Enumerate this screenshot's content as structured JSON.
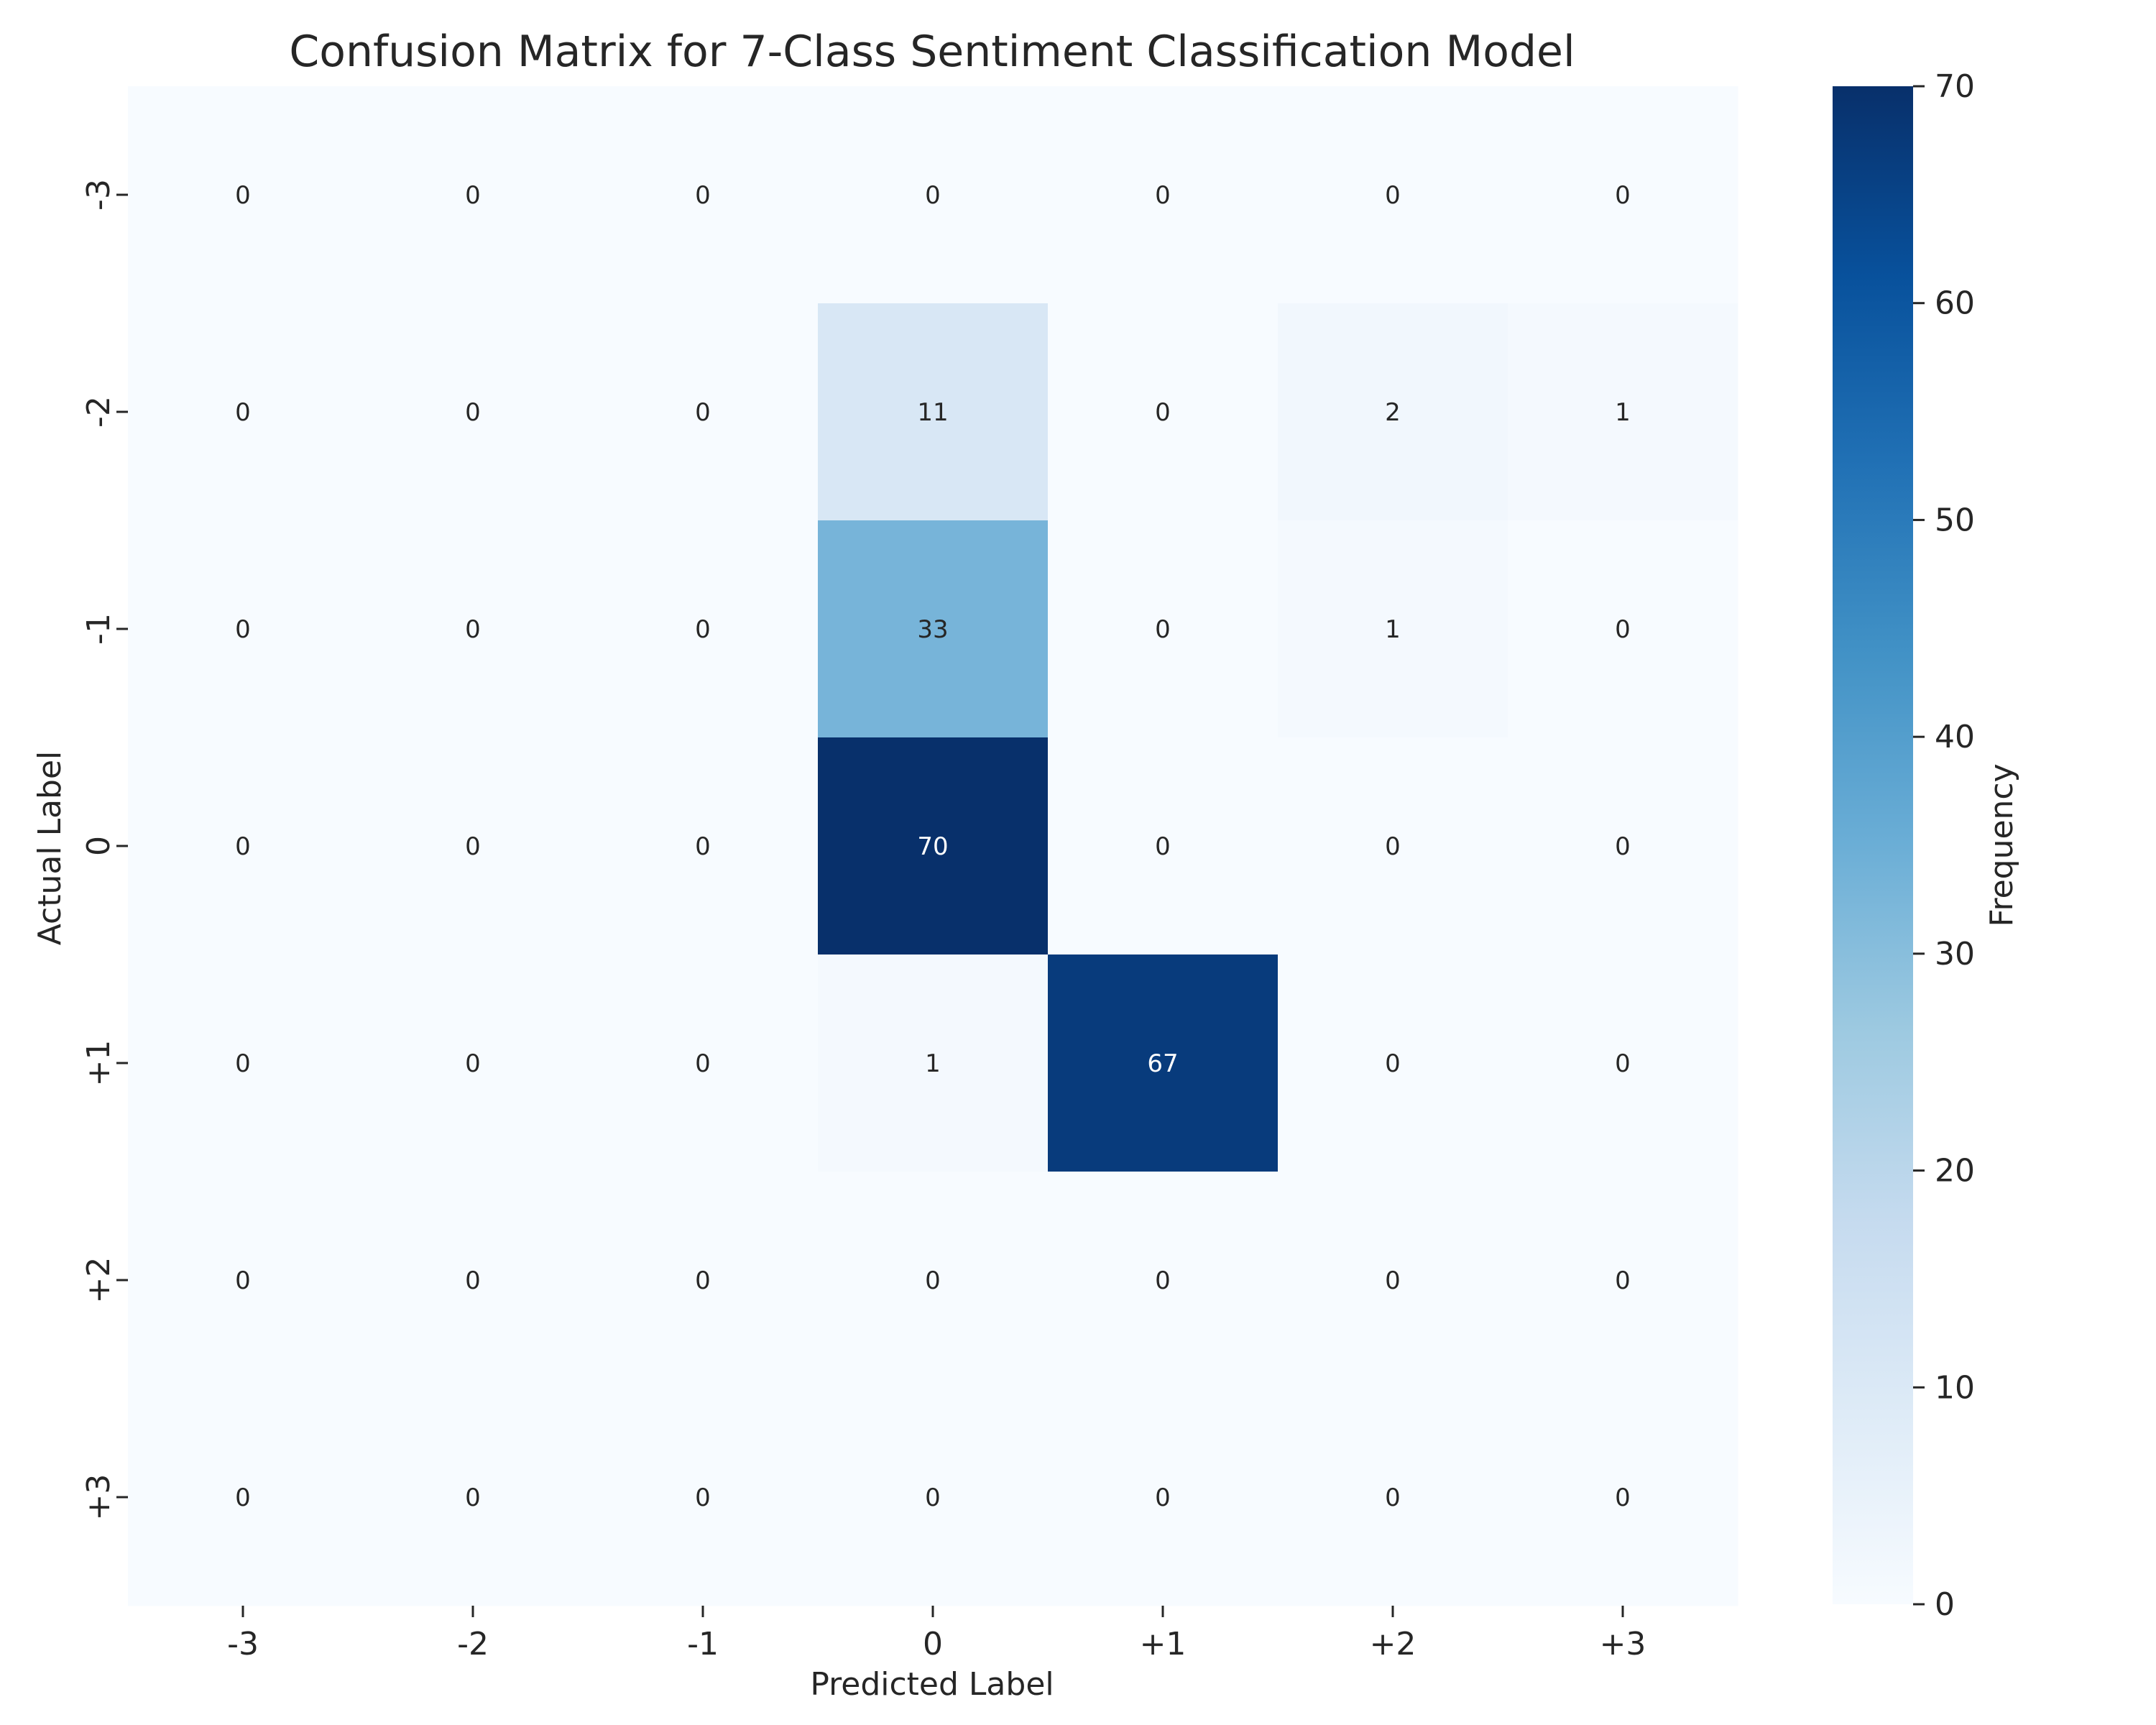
{
  "chart_data": {
    "type": "heatmap",
    "title": "Confusion Matrix for 7-Class Sentiment Classification Model",
    "xlabel": "Predicted Label",
    "ylabel": "Actual Label",
    "x_categories": [
      "-3",
      "-2",
      "-1",
      "0",
      "+1",
      "+2",
      "+3"
    ],
    "y_categories": [
      "-3",
      "-2",
      "-1",
      "0",
      "+1",
      "+2",
      "+3"
    ],
    "values": [
      [
        0,
        0,
        0,
        0,
        0,
        0,
        0
      ],
      [
        0,
        0,
        0,
        11,
        0,
        2,
        1
      ],
      [
        0,
        0,
        0,
        33,
        0,
        1,
        0
      ],
      [
        0,
        0,
        0,
        70,
        0,
        0,
        0
      ],
      [
        0,
        0,
        0,
        1,
        67,
        0,
        0
      ],
      [
        0,
        0,
        0,
        0,
        0,
        0,
        0
      ],
      [
        0,
        0,
        0,
        0,
        0,
        0,
        0
      ]
    ],
    "colorbar": {
      "label": "Frequency",
      "range": [
        0,
        70
      ],
      "ticks": [
        0,
        10,
        20,
        30,
        40,
        50,
        60,
        70
      ],
      "colormap": "Blues"
    }
  }
}
